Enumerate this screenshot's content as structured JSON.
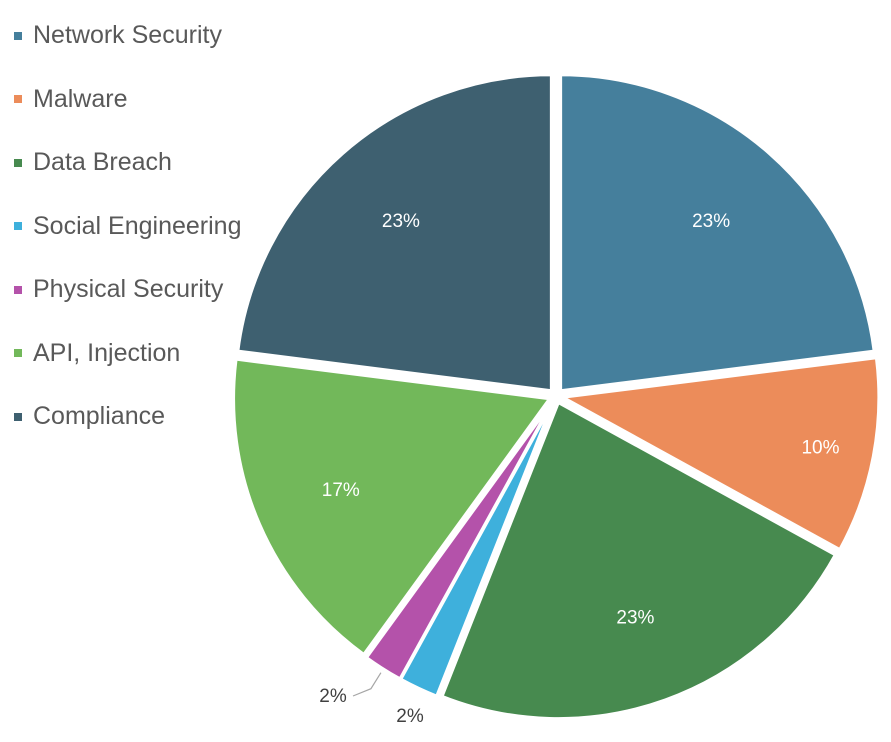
{
  "chart_data": {
    "type": "pie",
    "categories": [
      "Network Security",
      "Malware",
      "Data Breach",
      "Social Engineering",
      "Physical Security",
      "API, Injection",
      "Compliance"
    ],
    "values": [
      23,
      10,
      23,
      2,
      2,
      17,
      23
    ],
    "value_labels": [
      "23%",
      "10%",
      "23%",
      "2%",
      "2%",
      "17%",
      "23%"
    ],
    "colors": [
      "#457f9c",
      "#ec8c5a",
      "#478a4f",
      "#3eb0dc",
      "#b452aa",
      "#72b85a",
      "#3e6070"
    ],
    "legend": "left-top",
    "exploded": true
  }
}
